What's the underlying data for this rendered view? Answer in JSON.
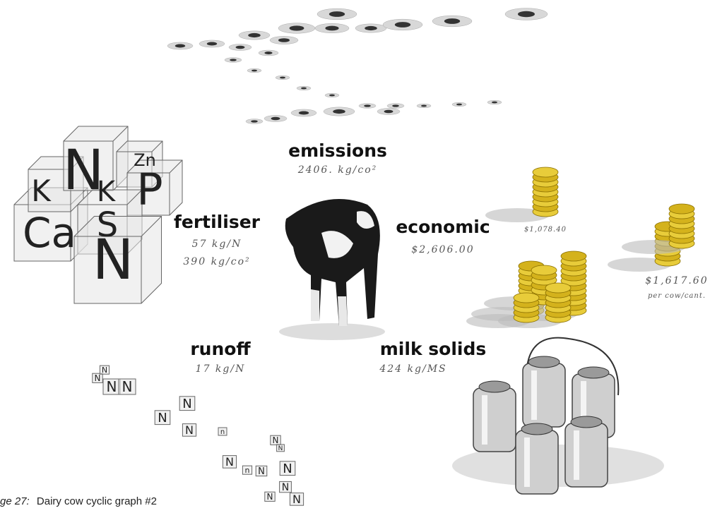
{
  "emissions": {
    "label": "emissions",
    "value": "2406. kg/co²"
  },
  "fertiliser": {
    "label": "fertiliser",
    "values": [
      "57 kg/N",
      "390 kg/co²"
    ]
  },
  "economic": {
    "label": "economic",
    "value": "$2,606.00"
  },
  "coins": {
    "first": "$1,078.40",
    "second": "$1,617.60",
    "second_note": "per cow/cant."
  },
  "runoff": {
    "label": "runoff",
    "value": "17 kg/N"
  },
  "milk_solids": {
    "label": "milk solids",
    "value": "424 kg/MS"
  },
  "elements": [
    "K",
    "N",
    "Zn",
    "P",
    "K",
    "S",
    "Ca",
    "N"
  ],
  "runoff_letters": [
    "N",
    "N",
    "N",
    "N",
    "N",
    "N",
    "N",
    "n",
    "N",
    "N",
    "N",
    "n",
    "N",
    "N",
    "N",
    "N",
    "N"
  ],
  "caption": {
    "prefix": "ge 27:",
    "text": "Dairy cow cyclic graph #2"
  }
}
